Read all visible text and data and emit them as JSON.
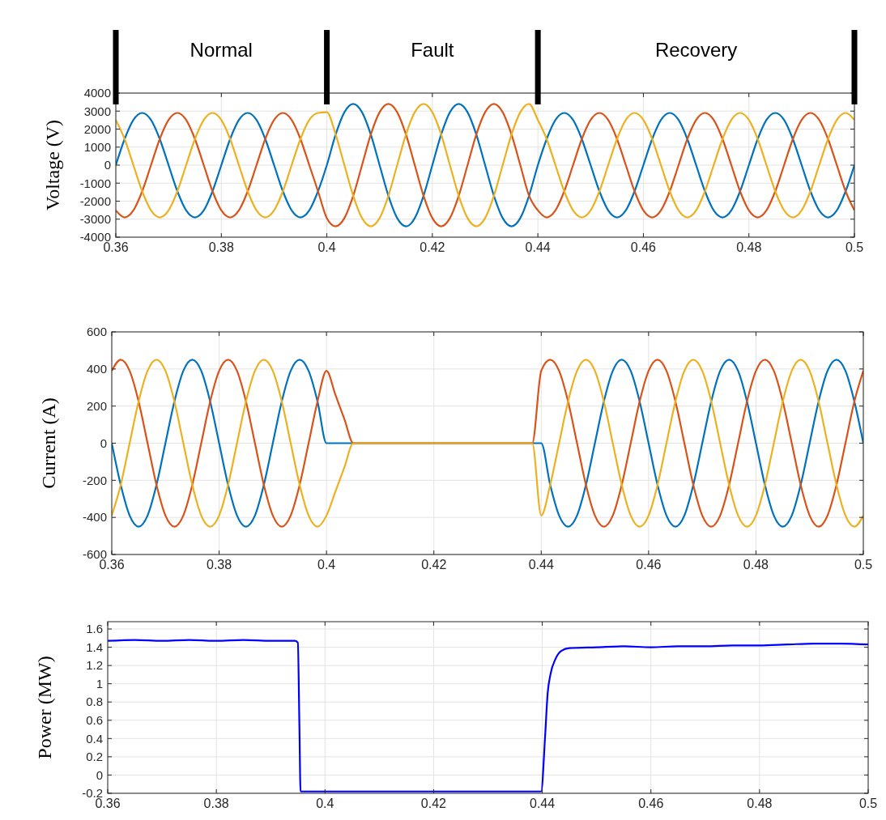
{
  "chart_data": [
    {
      "type": "line",
      "ylabel": "Voltage (V)",
      "xlim": [
        0.36,
        0.5
      ],
      "xticks": [
        0.36,
        0.38,
        0.4,
        0.42,
        0.44,
        0.46,
        0.48,
        0.5
      ],
      "ylim": [
        -4000,
        4000
      ],
      "yticks": [
        -4000,
        -3000,
        -2000,
        -1000,
        0,
        1000,
        2000,
        3000,
        4000
      ],
      "grid": true,
      "annotations": [
        "Normal",
        "Fault",
        "Recovery"
      ],
      "x": [
        0.36,
        0.36167,
        0.36333,
        0.365,
        0.36667,
        0.36833,
        0.37,
        0.37167,
        0.37333,
        0.375,
        0.37667,
        0.37833,
        0.38,
        0.38167,
        0.38333,
        0.385,
        0.38667,
        0.38833,
        0.39,
        0.39167,
        0.39333,
        0.395,
        0.39667,
        0.39833,
        0.4,
        0.40167,
        0.40333,
        0.405,
        0.40667,
        0.40833,
        0.41,
        0.41167,
        0.41333,
        0.415,
        0.41667,
        0.41833,
        0.42,
        0.42167,
        0.42333,
        0.425,
        0.42667,
        0.42833,
        0.43,
        0.43167,
        0.43333,
        0.435,
        0.43667,
        0.43833,
        0.44,
        0.44167,
        0.44333,
        0.445,
        0.44667,
        0.44833,
        0.45,
        0.45167,
        0.45333,
        0.455,
        0.45667,
        0.45833,
        0.46,
        0.46167,
        0.46333,
        0.465,
        0.46667,
        0.46833,
        0.47,
        0.47167,
        0.47333,
        0.475,
        0.47667,
        0.47833,
        0.48,
        0.48167,
        0.48333,
        0.485,
        0.48667,
        0.48833,
        0.49,
        0.49167,
        0.49333,
        0.495,
        0.49667,
        0.49833,
        0.5
      ],
      "series": [
        {
          "color": "#0072bd",
          "values": [
            0,
            1450,
            2510,
            2900,
            2510,
            1450,
            0,
            -1450,
            -2510,
            -2900,
            -2510,
            -1450,
            0,
            1450,
            2510,
            2900,
            2510,
            1450,
            0,
            -1450,
            -2510,
            -2900,
            -2510,
            -1450,
            0,
            1700,
            2940,
            3400,
            2940,
            1700,
            0,
            -1700,
            -2940,
            -3400,
            -2940,
            -1700,
            0,
            1700,
            2940,
            3400,
            2940,
            1700,
            0,
            -1700,
            -2940,
            -3400,
            -2940,
            -1700,
            0,
            1450,
            2510,
            2900,
            2510,
            1450,
            0,
            -1450,
            -2510,
            -2900,
            -2510,
            -1450,
            0,
            1450,
            2510,
            2900,
            2510,
            1450,
            0,
            -1450,
            -2510,
            -2900,
            -2510,
            -1450,
            0,
            1450,
            2510,
            2900,
            2510,
            1450,
            0,
            -1450,
            -2510,
            -2900,
            -2510,
            -1450,
            0
          ]
        },
        {
          "color": "#d95319",
          "values": [
            -2510,
            -2900,
            -2510,
            -1450,
            0,
            1450,
            2510,
            2900,
            2510,
            1450,
            0,
            -1450,
            -2510,
            -2900,
            -2510,
            -1450,
            0,
            1450,
            2510,
            2900,
            2510,
            1450,
            0,
            -1450,
            -2940,
            -3400,
            -2940,
            -1700,
            0,
            1700,
            2940,
            3400,
            2940,
            1700,
            0,
            -1700,
            -2940,
            -3400,
            -2940,
            -1700,
            0,
            1700,
            2940,
            3400,
            2940,
            1700,
            0,
            -1700,
            -2510,
            -2900,
            -2510,
            -1450,
            0,
            1450,
            2510,
            2900,
            2510,
            1450,
            0,
            -1450,
            -2510,
            -2900,
            -2510,
            -1450,
            0,
            1450,
            2510,
            2900,
            2510,
            1450,
            0,
            -1450,
            -2510,
            -2900,
            -2510,
            -1450,
            0,
            1450,
            2510,
            2900,
            2510,
            1450,
            0,
            -1450,
            -2510
          ]
        },
        {
          "color": "#edb120",
          "values": [
            2510,
            1450,
            0,
            -1450,
            -2510,
            -2900,
            -2510,
            -1450,
            0,
            1450,
            2510,
            2900,
            2510,
            1450,
            0,
            -1450,
            -2510,
            -2900,
            -2510,
            -1450,
            0,
            1450,
            2510,
            2900,
            2940,
            1700,
            0,
            -1700,
            -2940,
            -3400,
            -2940,
            -1700,
            0,
            1700,
            2940,
            3400,
            2940,
            1700,
            0,
            -1700,
            -2940,
            -3400,
            -2940,
            -1700,
            0,
            1700,
            2940,
            3400,
            2510,
            1450,
            0,
            -1450,
            -2510,
            -2900,
            -2510,
            -1450,
            0,
            1450,
            2510,
            2900,
            2510,
            1450,
            0,
            -1450,
            -2510,
            -2900,
            -2510,
            -1450,
            0,
            1450,
            2510,
            2900,
            2510,
            1450,
            0,
            -1450,
            -2510,
            -2900,
            -2510,
            -1450,
            0,
            1450,
            2510,
            2900,
            2510
          ]
        }
      ]
    },
    {
      "type": "line",
      "ylabel": "Current (A)",
      "xlim": [
        0.36,
        0.5
      ],
      "xticks": [
        0.36,
        0.38,
        0.4,
        0.42,
        0.44,
        0.46,
        0.48,
        0.5
      ],
      "ylim": [
        -600,
        600
      ],
      "yticks": [
        -600,
        -400,
        -200,
        0,
        200,
        400,
        600
      ],
      "grid": true,
      "x": [
        0.36,
        0.36167,
        0.36333,
        0.365,
        0.36667,
        0.36833,
        0.37,
        0.37167,
        0.37333,
        0.375,
        0.37667,
        0.37833,
        0.38,
        0.38167,
        0.38333,
        0.385,
        0.38667,
        0.38833,
        0.39,
        0.39167,
        0.39333,
        0.395,
        0.39667,
        0.39833,
        0.4,
        0.40167,
        0.40333,
        0.405,
        0.40667,
        0.40833,
        0.41,
        0.41167,
        0.41333,
        0.415,
        0.41667,
        0.41833,
        0.42,
        0.42167,
        0.42333,
        0.425,
        0.42667,
        0.42833,
        0.43,
        0.43167,
        0.43333,
        0.435,
        0.43667,
        0.43833,
        0.44,
        0.44167,
        0.44333,
        0.445,
        0.44667,
        0.44833,
        0.45,
        0.45167,
        0.45333,
        0.455,
        0.45667,
        0.45833,
        0.46,
        0.46167,
        0.46333,
        0.465,
        0.46667,
        0.46833,
        0.47,
        0.47167,
        0.47333,
        0.475,
        0.47667,
        0.47833,
        0.48,
        0.48167,
        0.48333,
        0.485,
        0.48667,
        0.48833,
        0.49,
        0.49167,
        0.49333,
        0.495,
        0.49667,
        0.49833,
        0.5
      ],
      "series": [
        {
          "color": "#0072bd",
          "values": [
            0,
            -225,
            -390,
            -450,
            -390,
            -225,
            0,
            225,
            390,
            450,
            390,
            225,
            0,
            -225,
            -390,
            -450,
            -390,
            -225,
            0,
            225,
            390,
            450,
            390,
            225,
            0,
            0,
            0,
            0,
            0,
            0,
            0,
            0,
            0,
            0,
            0,
            0,
            0,
            0,
            0,
            0,
            0,
            0,
            0,
            0,
            0,
            0,
            0,
            0,
            0,
            -225,
            -390,
            -450,
            -390,
            -225,
            0,
            225,
            390,
            450,
            390,
            225,
            0,
            -225,
            -390,
            -450,
            -390,
            -225,
            0,
            225,
            390,
            450,
            390,
            225,
            0,
            -225,
            -390,
            -450,
            -390,
            -225,
            0,
            225,
            390,
            450,
            390,
            225,
            0
          ]
        },
        {
          "color": "#d95319",
          "values": [
            390,
            450,
            390,
            225,
            0,
            -225,
            -390,
            -450,
            -390,
            -225,
            0,
            225,
            390,
            450,
            390,
            225,
            0,
            -225,
            -390,
            -450,
            -390,
            -225,
            0,
            225,
            390,
            260,
            130,
            0,
            0,
            0,
            0,
            0,
            0,
            0,
            0,
            0,
            0,
            0,
            0,
            0,
            0,
            0,
            0,
            0,
            0,
            0,
            0,
            0,
            390,
            450,
            390,
            225,
            0,
            -225,
            -390,
            -450,
            -390,
            -225,
            0,
            225,
            390,
            450,
            390,
            225,
            0,
            -225,
            -390,
            -450,
            -390,
            -225,
            0,
            225,
            390,
            450,
            390,
            225,
            0,
            -225,
            -390,
            -450,
            -390,
            -225,
            0,
            225,
            390
          ]
        },
        {
          "color": "#edb120",
          "values": [
            -390,
            -225,
            0,
            225,
            390,
            450,
            390,
            225,
            0,
            -225,
            -390,
            -450,
            -390,
            -225,
            0,
            225,
            390,
            450,
            390,
            225,
            0,
            -225,
            -390,
            -450,
            -390,
            -260,
            -130,
            0,
            0,
            0,
            0,
            0,
            0,
            0,
            0,
            0,
            0,
            0,
            0,
            0,
            0,
            0,
            0,
            0,
            0,
            0,
            0,
            0,
            -390,
            -225,
            0,
            225,
            390,
            450,
            390,
            225,
            0,
            -225,
            -390,
            -450,
            -390,
            -225,
            0,
            225,
            390,
            450,
            390,
            225,
            0,
            -225,
            -390,
            -450,
            -390,
            -225,
            0,
            225,
            390,
            450,
            390,
            225,
            0,
            -225,
            -390,
            -450,
            -390
          ]
        }
      ]
    },
    {
      "type": "line",
      "ylabel": "Power (MW)",
      "xlim": [
        0.36,
        0.5
      ],
      "xticks": [
        0.36,
        0.38,
        0.4,
        0.42,
        0.44,
        0.46,
        0.48,
        0.5
      ],
      "ylim": [
        -0.2,
        1.68
      ],
      "yticks": [
        -0.2,
        0,
        0.2,
        0.4,
        0.6,
        0.8,
        1,
        1.2,
        1.4,
        1.6
      ],
      "grid": true,
      "x": [
        0.36,
        0.365,
        0.37,
        0.375,
        0.38,
        0.385,
        0.39,
        0.3945,
        0.395,
        0.3953,
        0.3955,
        0.4,
        0.42,
        0.4398,
        0.4405,
        0.441,
        0.4415,
        0.4425,
        0.4435,
        0.445,
        0.45,
        0.455,
        0.46,
        0.465,
        0.47,
        0.475,
        0.48,
        0.485,
        0.49,
        0.495,
        0.5
      ],
      "series": [
        {
          "color": "#0000ff",
          "values": [
            1.47,
            1.48,
            1.47,
            1.48,
            1.47,
            1.48,
            1.47,
            1.47,
            1.45,
            0.5,
            -0.18,
            -0.18,
            -0.18,
            -0.18,
            0.4,
            0.9,
            1.1,
            1.28,
            1.36,
            1.39,
            1.4,
            1.41,
            1.4,
            1.41,
            1.41,
            1.42,
            1.42,
            1.43,
            1.44,
            1.44,
            1.43
          ]
        }
      ]
    }
  ]
}
